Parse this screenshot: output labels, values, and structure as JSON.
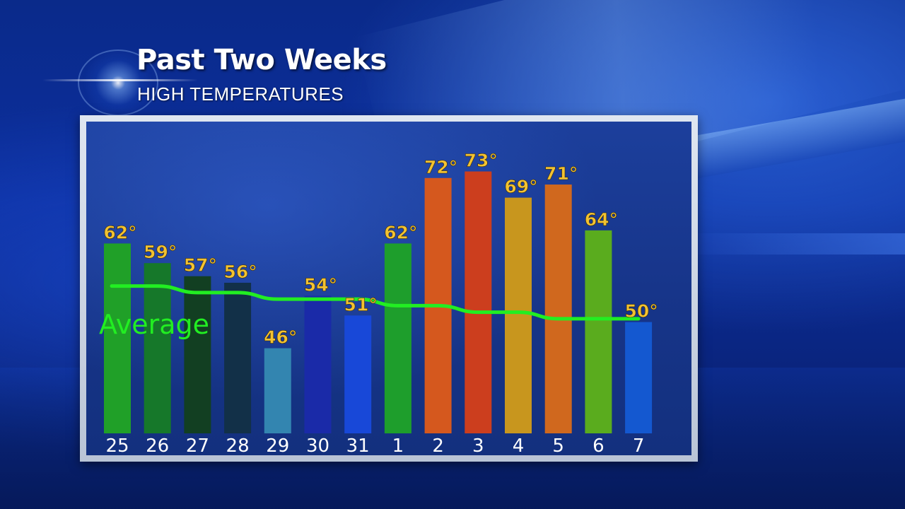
{
  "header": {
    "title": "Past Two Weeks",
    "subtitle": "HIGH TEMPERATURES"
  },
  "chart_data": {
    "type": "bar",
    "categories": [
      "25",
      "26",
      "27",
      "28",
      "29",
      "30",
      "31",
      "1",
      "2",
      "3",
      "4",
      "5",
      "6",
      "7"
    ],
    "values": [
      62,
      59,
      57,
      56,
      46,
      54,
      51,
      62,
      72,
      73,
      69,
      71,
      64,
      50
    ],
    "value_labels": [
      "62°",
      "59°",
      "57°",
      "56°",
      "46°",
      "54°",
      "51°",
      "62°",
      "72°",
      "73°",
      "69°",
      "71°",
      "64°",
      "50°"
    ],
    "bar_colors": [
      "#20a028",
      "#16782a",
      "#123f22",
      "#123048",
      "#3385b0",
      "#1a2aa8",
      "#1848d8",
      "#1e9e2c",
      "#d5581e",
      "#cc3e1e",
      "#c8961e",
      "#d0681e",
      "#5aac1e",
      "#1458d0"
    ],
    "line_series": {
      "name": "Average",
      "values": [
        55.5,
        55.5,
        54.5,
        54.5,
        53.5,
        53.5,
        53.5,
        52.5,
        52.5,
        51.5,
        51.5,
        50.5,
        50.5,
        50.5
      ],
      "color": "#22ee22"
    },
    "ylim": [
      33,
      75
    ],
    "label_color": "#f2c232",
    "tick_color": "#ffffff",
    "legend": "left",
    "grid": false
  }
}
